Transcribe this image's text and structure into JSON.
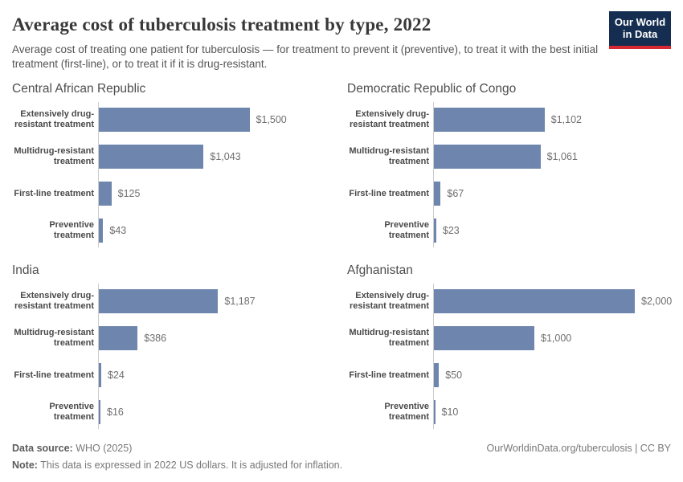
{
  "header": {
    "title": "Average cost of tuberculosis treatment by type, 2022",
    "subtitle": "Average cost of treating one patient for tuberculosis — for treatment to prevent it (preventive), to treat it with the best initial treatment (first-line), or to treat it if it is drug-resistant.",
    "logo": {
      "line1": "Our World",
      "line2": "in Data"
    }
  },
  "colors": {
    "bar": "#6e86ad",
    "axis": "#cccccc",
    "logo_navy": "#142d50",
    "logo_red": "#d62832"
  },
  "chart_data": {
    "type": "bar",
    "orientation": "horizontal",
    "unit": "2022 US dollars",
    "grid": false,
    "legend": "none",
    "xlim": [
      0,
      2000
    ],
    "categories": [
      "Extensively drug-resistant treatment",
      "Multidrug-resistant treatment",
      "First-line treatment",
      "Preventive treatment"
    ],
    "panels": [
      {
        "title": "Central African Republic",
        "values": [
          1500,
          1043,
          125,
          43
        ],
        "labels": [
          "$1,500",
          "$1,043",
          "$125",
          "$43"
        ]
      },
      {
        "title": "Democratic Republic of Congo",
        "values": [
          1102,
          1061,
          67,
          23
        ],
        "labels": [
          "$1,102",
          "$1,061",
          "$67",
          "$23"
        ]
      },
      {
        "title": "India",
        "values": [
          1187,
          386,
          24,
          16
        ],
        "labels": [
          "$1,187",
          "$386",
          "$24",
          "$16"
        ]
      },
      {
        "title": "Afghanistan",
        "values": [
          2000,
          1000,
          50,
          10
        ],
        "labels": [
          "$2,000",
          "$1,000",
          "$50",
          "$10"
        ]
      }
    ]
  },
  "footer": {
    "datasource_label": "Data source:",
    "datasource_value": " WHO (2025)",
    "link": "OurWorldinData.org/tuberculosis | CC BY",
    "note_label": "Note:",
    "note_value": " This data is expressed in 2022 US dollars. It is adjusted for inflation."
  }
}
